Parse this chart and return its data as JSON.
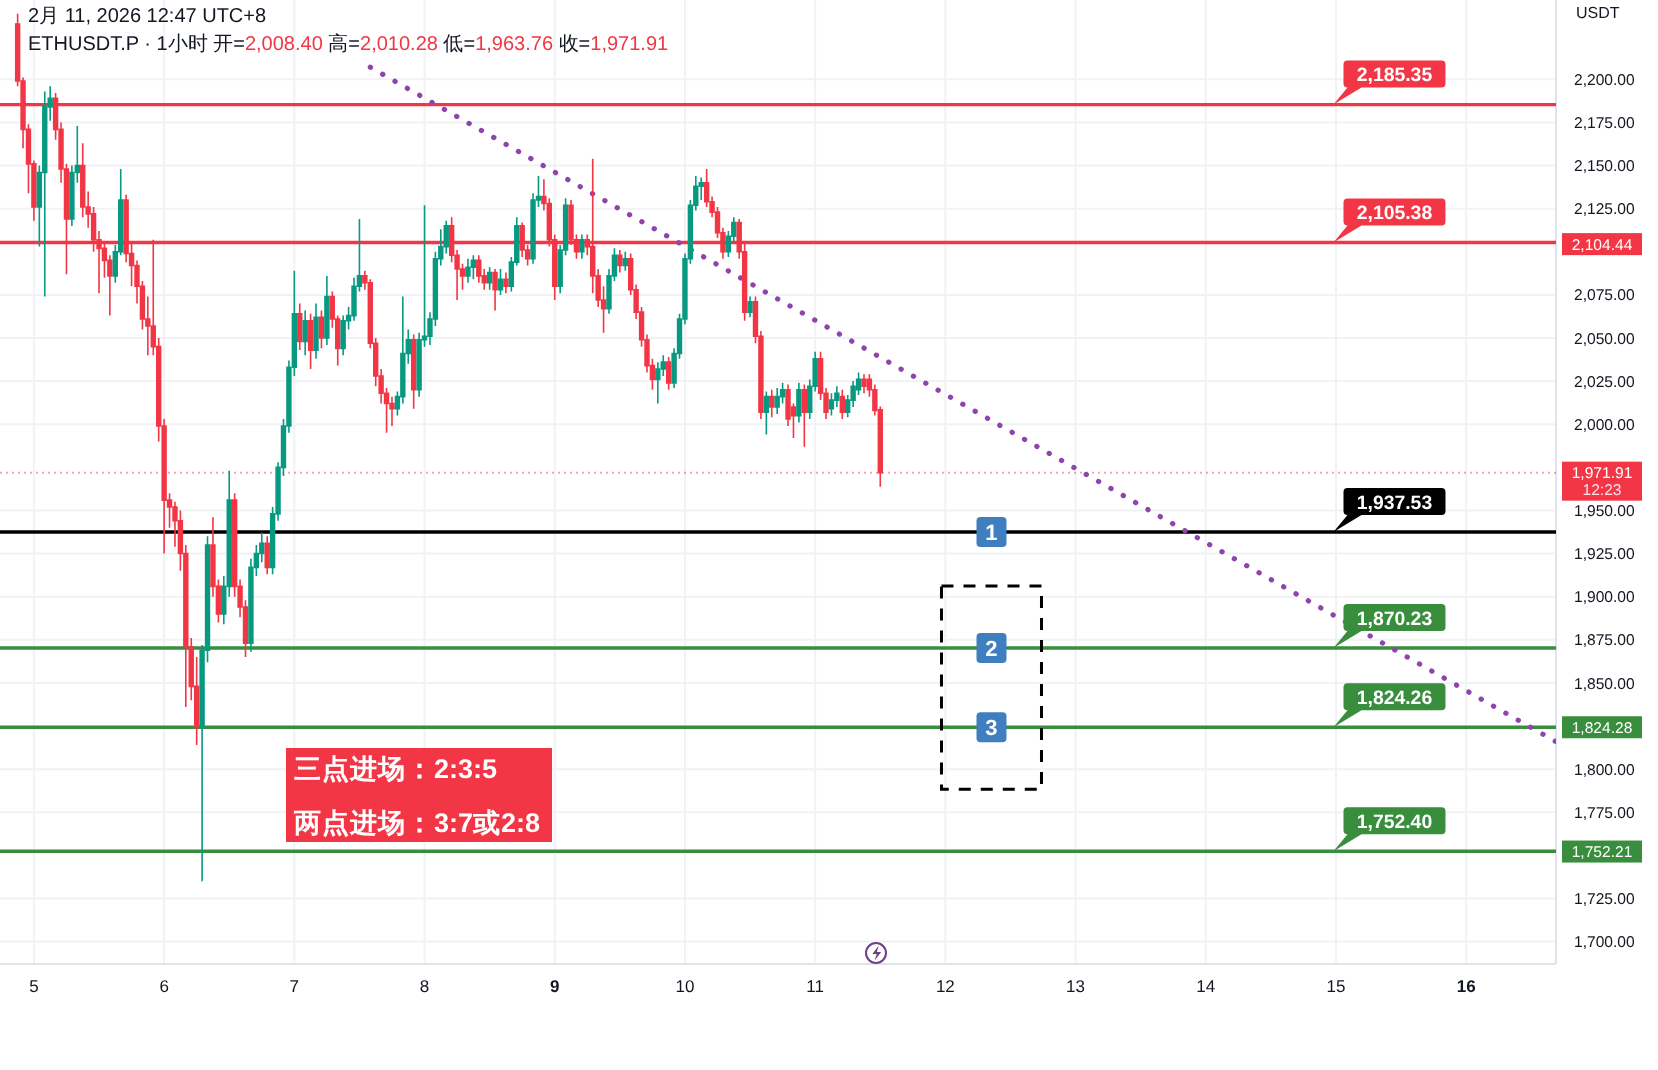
{
  "chart_data": {
    "type": "candlestick",
    "title": "ETHUSDT.P · 1小时 开=2,008.40 高=2,010.28 低=1,963.76 收=1,971.91",
    "subtitle": "2月 11, 2026 12:47 UTC+8",
    "ylabel": "USDT",
    "x": [
      "2026-02-04T21:00",
      "2026-02-04T22:00",
      "2026-02-04T23:00",
      "2026-02-05T00:00",
      "2026-02-05T01:00",
      "2026-02-05T02:00",
      "2026-02-05T03:00",
      "2026-02-05T04:00",
      "2026-02-05T05:00",
      "2026-02-05T06:00",
      "2026-02-05T07:00",
      "2026-02-05T08:00",
      "2026-02-05T09:00",
      "2026-02-05T10:00",
      "2026-02-05T11:00",
      "2026-02-05T12:00",
      "2026-02-05T13:00",
      "2026-02-05T14:00",
      "2026-02-05T15:00",
      "2026-02-05T16:00",
      "2026-02-05T17:00",
      "2026-02-05T18:00",
      "2026-02-05T19:00",
      "2026-02-05T20:00",
      "2026-02-05T21:00",
      "2026-02-05T22:00",
      "2026-02-05T23:00",
      "2026-02-06T00:00",
      "2026-02-06T01:00",
      "2026-02-06T02:00",
      "2026-02-06T03:00",
      "2026-02-06T04:00",
      "2026-02-06T05:00",
      "2026-02-06T06:00",
      "2026-02-06T07:00",
      "2026-02-06T08:00",
      "2026-02-06T09:00",
      "2026-02-06T10:00",
      "2026-02-06T11:00",
      "2026-02-06T12:00",
      "2026-02-06T13:00",
      "2026-02-06T14:00",
      "2026-02-06T15:00",
      "2026-02-06T16:00",
      "2026-02-06T17:00",
      "2026-02-06T18:00",
      "2026-02-06T19:00",
      "2026-02-06T20:00",
      "2026-02-06T21:00",
      "2026-02-06T22:00",
      "2026-02-06T23:00",
      "2026-02-07T00:00",
      "2026-02-07T01:00",
      "2026-02-07T02:00",
      "2026-02-07T03:00",
      "2026-02-07T04:00",
      "2026-02-07T05:00",
      "2026-02-07T06:00",
      "2026-02-07T07:00",
      "2026-02-07T08:00",
      "2026-02-07T09:00",
      "2026-02-07T10:00",
      "2026-02-07T11:00",
      "2026-02-07T12:00",
      "2026-02-07T13:00",
      "2026-02-07T14:00",
      "2026-02-07T15:00",
      "2026-02-07T16:00",
      "2026-02-07T17:00",
      "2026-02-07T18:00",
      "2026-02-07T19:00",
      "2026-02-07T20:00",
      "2026-02-07T21:00",
      "2026-02-07T22:00",
      "2026-02-07T23:00",
      "2026-02-08T00:00",
      "2026-02-08T01:00",
      "2026-02-08T02:00",
      "2026-02-08T03:00",
      "2026-02-08T04:00",
      "2026-02-08T05:00",
      "2026-02-08T06:00",
      "2026-02-08T07:00",
      "2026-02-08T08:00",
      "2026-02-08T09:00",
      "2026-02-08T10:00",
      "2026-02-08T11:00",
      "2026-02-08T12:00",
      "2026-02-08T13:00",
      "2026-02-08T14:00",
      "2026-02-08T15:00",
      "2026-02-08T16:00",
      "2026-02-08T17:00",
      "2026-02-08T18:00",
      "2026-02-08T19:00",
      "2026-02-08T20:00",
      "2026-02-08T21:00",
      "2026-02-08T22:00",
      "2026-02-08T23:00",
      "2026-02-09T00:00",
      "2026-02-09T01:00",
      "2026-02-09T02:00",
      "2026-02-09T03:00",
      "2026-02-09T04:00",
      "2026-02-09T05:00",
      "2026-02-09T06:00",
      "2026-02-09T07:00",
      "2026-02-09T08:00",
      "2026-02-09T09:00",
      "2026-02-09T10:00",
      "2026-02-09T11:00",
      "2026-02-09T12:00",
      "2026-02-09T13:00",
      "2026-02-09T14:00",
      "2026-02-09T15:00",
      "2026-02-09T16:00",
      "2026-02-09T17:00",
      "2026-02-09T18:00",
      "2026-02-09T19:00",
      "2026-02-09T20:00",
      "2026-02-09T21:00",
      "2026-02-09T22:00",
      "2026-02-09T23:00",
      "2026-02-10T00:00",
      "2026-02-10T01:00",
      "2026-02-10T02:00",
      "2026-02-10T03:00",
      "2026-02-10T04:00",
      "2026-02-10T05:00",
      "2026-02-10T06:00",
      "2026-02-10T07:00",
      "2026-02-10T08:00",
      "2026-02-10T09:00",
      "2026-02-10T10:00",
      "2026-02-10T11:00",
      "2026-02-10T12:00",
      "2026-02-10T13:00",
      "2026-02-10T14:00",
      "2026-02-10T15:00",
      "2026-02-10T16:00",
      "2026-02-10T17:00",
      "2026-02-10T18:00",
      "2026-02-10T19:00",
      "2026-02-10T20:00",
      "2026-02-10T21:00",
      "2026-02-10T22:00",
      "2026-02-10T23:00",
      "2026-02-11T00:00",
      "2026-02-11T01:00",
      "2026-02-11T02:00",
      "2026-02-11T03:00",
      "2026-02-11T04:00",
      "2026-02-11T05:00",
      "2026-02-11T06:00",
      "2026-02-11T07:00",
      "2026-02-11T08:00",
      "2026-02-11T09:00",
      "2026-02-11T10:00",
      "2026-02-11T11:00",
      "2026-02-11T12:00"
    ],
    "ohlc": [
      [
        2232,
        2238,
        2196,
        2199
      ],
      [
        2199,
        2201,
        2160,
        2171
      ],
      [
        2171,
        2174,
        2134,
        2151
      ],
      [
        2151,
        2153,
        2118,
        2126
      ],
      [
        2126,
        2150,
        2103,
        2146
      ],
      [
        2146,
        2193,
        2074,
        2184
      ],
      [
        2184,
        2196,
        2176,
        2189
      ],
      [
        2189,
        2192,
        2165,
        2171
      ],
      [
        2171,
        2175,
        2140,
        2148
      ],
      [
        2148,
        2151,
        2087,
        2119
      ],
      [
        2119,
        2150,
        2115,
        2146
      ],
      [
        2146,
        2173,
        2140,
        2150
      ],
      [
        2150,
        2163,
        2120,
        2126
      ],
      [
        2126,
        2135,
        2114,
        2122
      ],
      [
        2122,
        2126,
        2100,
        2107
      ],
      [
        2107,
        2112,
        2076,
        2102
      ],
      [
        2102,
        2106,
        2085,
        2095
      ],
      [
        2095,
        2098,
        2063,
        2086
      ],
      [
        2086,
        2104,
        2082,
        2100
      ],
      [
        2100,
        2148,
        2098,
        2130
      ],
      [
        2130,
        2133,
        2094,
        2099
      ],
      [
        2099,
        2105,
        2080,
        2092
      ],
      [
        2092,
        2095,
        2070,
        2080
      ],
      [
        2080,
        2083,
        2055,
        2061
      ],
      [
        2061,
        2074,
        2040,
        2057
      ],
      [
        2057,
        2107,
        2040,
        2045
      ],
      [
        2045,
        2050,
        1990,
        1999
      ],
      [
        1999,
        2003,
        1925,
        1956
      ],
      [
        1956,
        1960,
        1940,
        1952
      ],
      [
        1952,
        1955,
        1929,
        1944
      ],
      [
        1944,
        1950,
        1915,
        1925
      ],
      [
        1925,
        1930,
        1836,
        1871
      ],
      [
        1871,
        1876,
        1840,
        1848
      ],
      [
        1848,
        1865,
        1814,
        1825
      ],
      [
        1825,
        1872,
        1735,
        1869
      ],
      [
        1869,
        1935,
        1862,
        1930
      ],
      [
        1930,
        1946,
        1900,
        1906
      ],
      [
        1906,
        1910,
        1885,
        1890
      ],
      [
        1890,
        1912,
        1884,
        1906
      ],
      [
        1906,
        1973,
        1900,
        1956
      ],
      [
        1956,
        1960,
        1900,
        1906
      ],
      [
        1906,
        1910,
        1888,
        1894
      ],
      [
        1894,
        1898,
        1865,
        1873
      ],
      [
        1873,
        1922,
        1868,
        1917
      ],
      [
        1917,
        1930,
        1912,
        1925
      ],
      [
        1925,
        1937,
        1920,
        1931
      ],
      [
        1931,
        1935,
        1913,
        1917
      ],
      [
        1917,
        1952,
        1913,
        1948
      ],
      [
        1948,
        1978,
        1944,
        1975
      ],
      [
        1975,
        2003,
        1970,
        1999
      ],
      [
        1999,
        2037,
        1995,
        2033
      ],
      [
        2033,
        2089,
        2028,
        2064
      ],
      [
        2064,
        2070,
        2043,
        2048
      ],
      [
        2048,
        2066,
        2040,
        2060
      ],
      [
        2060,
        2064,
        2032,
        2043
      ],
      [
        2043,
        2070,
        2038,
        2062
      ],
      [
        2062,
        2066,
        2044,
        2050
      ],
      [
        2050,
        2086,
        2046,
        2074
      ],
      [
        2074,
        2077,
        2056,
        2061
      ],
      [
        2061,
        2063,
        2034,
        2044
      ],
      [
        2044,
        2063,
        2040,
        2060
      ],
      [
        2060,
        2068,
        2055,
        2063
      ],
      [
        2063,
        2085,
        2060,
        2080
      ],
      [
        2080,
        2119,
        2077,
        2086
      ],
      [
        2086,
        2089,
        2078,
        2082
      ],
      [
        2082,
        2084,
        2044,
        2047
      ],
      [
        2047,
        2050,
        2022,
        2028
      ],
      [
        2028,
        2032,
        2012,
        2018
      ],
      [
        2018,
        2021,
        1995,
        2012
      ],
      [
        2012,
        2016,
        1999,
        2009
      ],
      [
        2009,
        2019,
        2005,
        2016
      ],
      [
        2016,
        2074,
        2012,
        2041
      ],
      [
        2041,
        2055,
        2035,
        2049
      ],
      [
        2049,
        2052,
        2009,
        2020
      ],
      [
        2020,
        2053,
        2016,
        2049
      ],
      [
        2049,
        2127,
        2045,
        2051
      ],
      [
        2051,
        2065,
        2046,
        2061
      ],
      [
        2061,
        2100,
        2057,
        2096
      ],
      [
        2096,
        2113,
        2092,
        2103
      ],
      [
        2103,
        2118,
        2099,
        2115
      ],
      [
        2115,
        2120,
        2094,
        2098
      ],
      [
        2098,
        2101,
        2072,
        2090
      ],
      [
        2090,
        2093,
        2078,
        2086
      ],
      [
        2086,
        2096,
        2082,
        2091
      ],
      [
        2091,
        2098,
        2084,
        2095
      ],
      [
        2095,
        2098,
        2082,
        2086
      ],
      [
        2086,
        2090,
        2078,
        2082
      ],
      [
        2082,
        2091,
        2078,
        2088
      ],
      [
        2088,
        2090,
        2066,
        2078
      ],
      [
        2078,
        2090,
        2075,
        2084
      ],
      [
        2084,
        2088,
        2076,
        2080
      ],
      [
        2080,
        2097,
        2077,
        2094
      ],
      [
        2094,
        2120,
        2092,
        2115
      ],
      [
        2115,
        2117,
        2097,
        2101
      ],
      [
        2101,
        2104,
        2092,
        2096
      ],
      [
        2096,
        2134,
        2093,
        2130
      ],
      [
        2130,
        2144,
        2126,
        2132
      ],
      [
        2132,
        2142,
        2124,
        2128
      ],
      [
        2128,
        2131,
        2103,
        2107
      ],
      [
        2107,
        2110,
        2072,
        2080
      ],
      [
        2080,
        2104,
        2076,
        2101
      ],
      [
        2101,
        2131,
        2098,
        2127
      ],
      [
        2127,
        2130,
        2104,
        2107
      ],
      [
        2107,
        2110,
        2096,
        2100
      ],
      [
        2100,
        2110,
        2096,
        2107
      ],
      [
        2107,
        2110,
        2098,
        2103
      ],
      [
        2103,
        2154,
        2076,
        2086
      ],
      [
        2086,
        2090,
        2068,
        2072
      ],
      [
        2072,
        2080,
        2053,
        2067
      ],
      [
        2067,
        2090,
        2064,
        2086
      ],
      [
        2086,
        2102,
        2083,
        2098
      ],
      [
        2098,
        2101,
        2088,
        2092
      ],
      [
        2092,
        2100,
        2089,
        2096
      ],
      [
        2096,
        2099,
        2075,
        2078
      ],
      [
        2078,
        2081,
        2061,
        2065
      ],
      [
        2065,
        2068,
        2045,
        2049
      ],
      [
        2049,
        2052,
        2030,
        2034
      ],
      [
        2034,
        2038,
        2020,
        2026
      ],
      [
        2026,
        2036,
        2012,
        2032
      ],
      [
        2032,
        2040,
        2028,
        2036
      ],
      [
        2036,
        2039,
        2020,
        2024
      ],
      [
        2024,
        2044,
        2021,
        2041
      ],
      [
        2041,
        2064,
        2038,
        2061
      ],
      [
        2061,
        2099,
        2058,
        2096
      ],
      [
        2096,
        2130,
        2093,
        2127
      ],
      [
        2127,
        2144,
        2124,
        2138
      ],
      [
        2138,
        2143,
        2130,
        2140
      ],
      [
        2140,
        2148,
        2126,
        2129
      ],
      [
        2129,
        2132,
        2120,
        2123
      ],
      [
        2123,
        2126,
        2108,
        2111
      ],
      [
        2111,
        2114,
        2096,
        2100
      ],
      [
        2100,
        2112,
        2097,
        2109
      ],
      [
        2109,
        2120,
        2106,
        2117
      ],
      [
        2117,
        2119,
        2096,
        2100
      ],
      [
        2100,
        2106,
        2060,
        2065
      ],
      [
        2065,
        2074,
        2062,
        2071
      ],
      [
        2071,
        2074,
        2047,
        2051
      ],
      [
        2051,
        2054,
        2003,
        2007
      ],
      [
        2007,
        2019,
        1994,
        2016
      ],
      [
        2016,
        2020,
        2004,
        2010
      ],
      [
        2010,
        2021,
        2006,
        2016
      ],
      [
        2016,
        2024,
        2012,
        2020
      ],
      [
        2020,
        2023,
        1999,
        2003
      ],
      [
        2010,
        2012,
        1992,
        2005
      ],
      [
        2005,
        2024,
        2001,
        2020
      ],
      [
        2020,
        2023,
        1987,
        2007
      ],
      [
        2007,
        2026,
        2003,
        2022
      ],
      [
        2022,
        2042,
        2019,
        2038
      ],
      [
        2038,
        2042,
        2014,
        2018
      ],
      [
        2018,
        2021,
        2003,
        2007
      ],
      [
        2009,
        2018,
        2005,
        2014
      ],
      [
        2014,
        2022,
        2010,
        2018
      ],
      [
        2016,
        2020,
        2003,
        2007
      ],
      [
        2007,
        2017,
        2004,
        2014
      ],
      [
        2014,
        2025,
        2010,
        2022
      ],
      [
        2020,
        2030,
        2017,
        2026
      ],
      [
        2026,
        2029,
        2018,
        2022
      ],
      [
        2026,
        2029,
        2016,
        2020
      ],
      [
        2020,
        2023,
        2005,
        2008
      ],
      [
        2008.4,
        2010.28,
        1963.76,
        1971.91
      ]
    ],
    "colors": [
      "#f23645",
      "#f23645",
      "#f23645",
      "#f23645",
      "#089981",
      "#089981",
      "#089981",
      "#f23645",
      "#f23645",
      "#f23645",
      "#089981",
      "#089981",
      "#f23645",
      "#f23645",
      "#f23645",
      "#f23645",
      "#f23645",
      "#f23645",
      "#089981",
      "#089981",
      "#f23645",
      "#f23645",
      "#f23645",
      "#f23645",
      "#f23645",
      "#f23645",
      "#f23645",
      "#f23645",
      "#f23645",
      "#f23645",
      "#f23645",
      "#f23645",
      "#f23645",
      "#f23645",
      "#089981",
      "#089981",
      "#f23645",
      "#f23645",
      "#089981",
      "#089981",
      "#f23645",
      "#f23645",
      "#f23645",
      "#089981",
      "#089981",
      "#089981",
      "#f23645",
      "#089981",
      "#089981",
      "#089981",
      "#089981",
      "#089981",
      "#f23645",
      "#089981",
      "#f23645",
      "#089981",
      "#f23645",
      "#089981",
      "#f23645",
      "#f23645",
      "#089981",
      "#089981",
      "#089981",
      "#089981",
      "#f23645",
      "#f23645",
      "#f23645",
      "#f23645",
      "#f23645",
      "#f23645",
      "#089981",
      "#089981",
      "#089981",
      "#f23645",
      "#089981",
      "#089981",
      "#089981",
      "#089981",
      "#089981",
      "#089981",
      "#f23645",
      "#f23645",
      "#f23645",
      "#089981",
      "#089981",
      "#f23645",
      "#f23645",
      "#089981",
      "#f23645",
      "#089981",
      "#f23645",
      "#089981",
      "#089981",
      "#f23645",
      "#f23645",
      "#089981",
      "#089981",
      "#f23645",
      "#f23645",
      "#f23645",
      "#089981",
      "#089981",
      "#f23645",
      "#f23645",
      "#089981",
      "#f23645",
      "#f23645",
      "#f23645",
      "#f23645",
      "#089981",
      "#089981",
      "#f23645",
      "#089981",
      "#f23645",
      "#f23645",
      "#f23645",
      "#f23645",
      "#f23645",
      "#089981",
      "#089981",
      "#f23645",
      "#089981",
      "#089981",
      "#089981",
      "#089981",
      "#089981",
      "#089981",
      "#f23645",
      "#f23645",
      "#f23645",
      "#f23645",
      "#089981",
      "#089981",
      "#f23645",
      "#f23645",
      "#089981",
      "#f23645",
      "#f23645",
      "#089981",
      "#f23645",
      "#089981",
      "#089981",
      "#f23645",
      "#f23645",
      "#089981",
      "#f23645",
      "#089981",
      "#089981",
      "#f23645",
      "#f23645",
      "#089981",
      "#089981",
      "#f23645",
      "#089981",
      "#089981",
      "#089981",
      "#f23645",
      "#f23645",
      "#f23645",
      "#f23645"
    ],
    "series": [
      {
        "type": "line",
        "x": [
          "2026-02-07T14:00",
          "2026-02-16T16:30"
        ],
        "values": [
          2207,
          1816
        ],
        "color": "#8e44ad",
        "line_style": "dotted"
      }
    ],
    "xlim": [
      "2026-02-04T17:45",
      "2026-02-16T16:33"
    ],
    "xticks": [
      {
        "value": "2026-02-05",
        "label": "5"
      },
      {
        "value": "2026-02-06",
        "label": "6"
      },
      {
        "value": "2026-02-07",
        "label": "7"
      },
      {
        "value": "2026-02-08",
        "label": "8"
      },
      {
        "value": "2026-02-09",
        "label": "9"
      },
      {
        "value": "2026-02-10",
        "label": "10"
      },
      {
        "value": "2026-02-11",
        "label": "11"
      },
      {
        "value": "2026-02-12",
        "label": "12"
      },
      {
        "value": "2026-02-13",
        "label": "13"
      },
      {
        "value": "2026-02-14",
        "label": "14"
      },
      {
        "value": "2026-02-15",
        "label": "15"
      },
      {
        "value": "2026-02-16",
        "label": "16"
      }
    ],
    "ylim": [
      1687,
      2246
    ],
    "yticks": [
      {
        "value": 1700,
        "label": "1,700.00"
      },
      {
        "value": 1725,
        "label": "1,725.00"
      },
      {
        "value": 1775,
        "label": "1,775.00"
      },
      {
        "value": 1800,
        "label": "1,800.00"
      },
      {
        "value": 1850,
        "label": "1,850.00"
      },
      {
        "value": 1875,
        "label": "1,875.00"
      },
      {
        "value": 1900,
        "label": "1,900.00"
      },
      {
        "value": 1925,
        "label": "1,925.00"
      },
      {
        "value": 1950,
        "label": "1,950.00"
      },
      {
        "value": 2000,
        "label": "2,000.00"
      },
      {
        "value": 2025,
        "label": "2,025.00"
      },
      {
        "value": 2050,
        "label": "2,050.00"
      },
      {
        "value": 2075,
        "label": "2,075.00"
      },
      {
        "value": 2125,
        "label": "2,125.00"
      },
      {
        "value": 2150,
        "label": "2,150.00"
      },
      {
        "value": 2175,
        "label": "2,175.00"
      },
      {
        "value": 2200,
        "label": "2,200.00"
      }
    ],
    "grid": true,
    "ref_lines": [
      {
        "axis": "y",
        "value": 2185.35,
        "label": "2,185.35",
        "color": "#f23645"
      },
      {
        "axis": "y",
        "value": 2105.38,
        "label": "2,105.38",
        "color": "#f23645"
      },
      {
        "axis": "y",
        "value": 1971.91,
        "color": "#f23645",
        "line_style": "dotted"
      },
      {
        "axis": "y",
        "value": 1937.53,
        "label": "1,937.53",
        "color": "#000000"
      },
      {
        "axis": "y",
        "value": 1870.23,
        "label": "1,870.23",
        "color": "#388e3c"
      },
      {
        "axis": "y",
        "value": 1824.26,
        "label": "1,824.26",
        "color": "#388e3c"
      },
      {
        "axis": "y",
        "value": 1752.4,
        "label": "1,752.40",
        "color": "#388e3c"
      }
    ],
    "annotations": [
      {
        "text": "1",
        "x": "2026-02-12T08:30",
        "y": 1937.53
      },
      {
        "text": "2",
        "x": "2026-02-12T08:30",
        "y": 1870.23
      },
      {
        "text": "3",
        "x": "2026-02-12T08:30",
        "y": 1824.26
      },
      "三点进场：2:3:5",
      "两点进场：3:7或2:8",
      {
        "text": "2,104.44",
        "x": "2026-02-16T16:33",
        "y": 2104.44
      },
      {
        "text": "1,971.91",
        "x": "2026-02-16T16:33",
        "y": 1971.91
      },
      {
        "text": "12:23",
        "x": "2026-02-16T16:33",
        "y": 1971.91
      },
      {
        "text": "1,824.28",
        "x": "2026-02-16T16:33",
        "y": 1824.28
      },
      {
        "text": "1,752.21",
        "x": "2026-02-16T16:33",
        "y": 1752.21
      }
    ]
  }
}
